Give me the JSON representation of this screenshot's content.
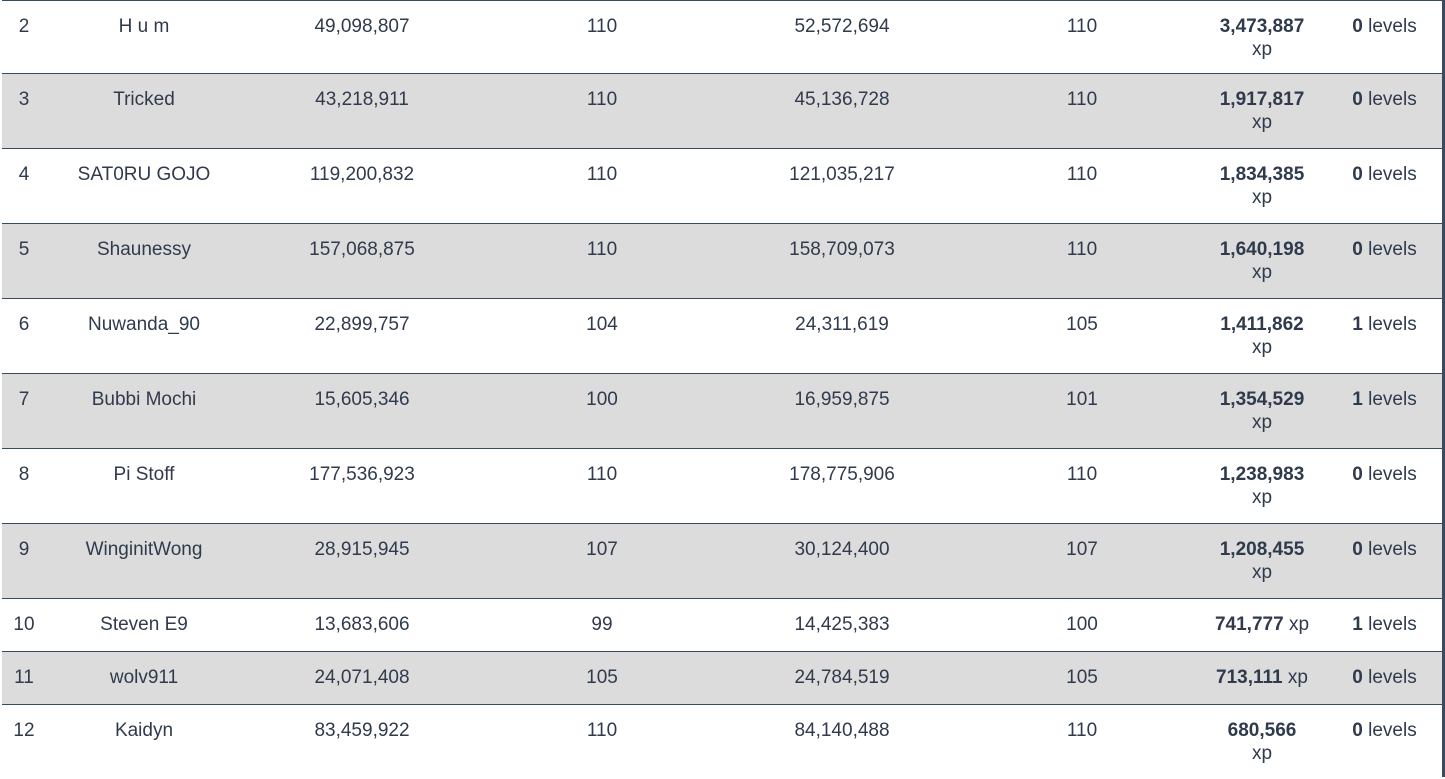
{
  "rows": [
    {
      "rank": "2",
      "name": "H u m",
      "xp_start": "49,098,807",
      "level_start": "110",
      "xp_end": "52,572,694",
      "level_end": "110",
      "xp_gain": "3,473,887",
      "xp_unit": "xp",
      "levels_gain": "0",
      "levels_unit": "levels",
      "wrap": true
    },
    {
      "rank": "3",
      "name": "Tricked",
      "xp_start": "43,218,911",
      "level_start": "110",
      "xp_end": "45,136,728",
      "level_end": "110",
      "xp_gain": "1,917,817",
      "xp_unit": "xp",
      "levels_gain": "0",
      "levels_unit": "levels",
      "wrap": true
    },
    {
      "rank": "4",
      "name": "SAT0RU GOJO",
      "xp_start": "119,200,832",
      "level_start": "110",
      "xp_end": "121,035,217",
      "level_end": "110",
      "xp_gain": "1,834,385",
      "xp_unit": "xp",
      "levels_gain": "0",
      "levels_unit": "levels",
      "wrap": true
    },
    {
      "rank": "5",
      "name": "Shaunessy",
      "xp_start": "157,068,875",
      "level_start": "110",
      "xp_end": "158,709,073",
      "level_end": "110",
      "xp_gain": "1,640,198",
      "xp_unit": "xp",
      "levels_gain": "0",
      "levels_unit": "levels",
      "wrap": true
    },
    {
      "rank": "6",
      "name": "Nuwanda_90",
      "xp_start": "22,899,757",
      "level_start": "104",
      "xp_end": "24,311,619",
      "level_end": "105",
      "xp_gain": "1,411,862",
      "xp_unit": "xp",
      "levels_gain": "1",
      "levels_unit": "levels",
      "wrap": true
    },
    {
      "rank": "7",
      "name": "Bubbi Mochi",
      "xp_start": "15,605,346",
      "level_start": "100",
      "xp_end": "16,959,875",
      "level_end": "101",
      "xp_gain": "1,354,529",
      "xp_unit": "xp",
      "levels_gain": "1",
      "levels_unit": "levels",
      "wrap": true
    },
    {
      "rank": "8",
      "name": "Pi Stoff",
      "xp_start": "177,536,923",
      "level_start": "110",
      "xp_end": "178,775,906",
      "level_end": "110",
      "xp_gain": "1,238,983",
      "xp_unit": "xp",
      "levels_gain": "0",
      "levels_unit": "levels",
      "wrap": true
    },
    {
      "rank": "9",
      "name": "WinginitWong",
      "xp_start": "28,915,945",
      "level_start": "107",
      "xp_end": "30,124,400",
      "level_end": "107",
      "xp_gain": "1,208,455",
      "xp_unit": "xp",
      "levels_gain": "0",
      "levels_unit": "levels",
      "wrap": true
    },
    {
      "rank": "10",
      "name": "Steven E9",
      "xp_start": "13,683,606",
      "level_start": "99",
      "xp_end": "14,425,383",
      "level_end": "100",
      "xp_gain": "741,777",
      "xp_unit": "xp",
      "levels_gain": "1",
      "levels_unit": "levels",
      "wrap": false
    },
    {
      "rank": "11",
      "name": "wolv911",
      "xp_start": "24,071,408",
      "level_start": "105",
      "xp_end": "24,784,519",
      "level_end": "105",
      "xp_gain": "713,111",
      "xp_unit": "xp",
      "levels_gain": "0",
      "levels_unit": "levels",
      "wrap": false
    },
    {
      "rank": "12",
      "name": "Kaidyn",
      "xp_start": "83,459,922",
      "level_start": "110",
      "xp_end": "84,140,488",
      "level_end": "110",
      "xp_gain": "680,566",
      "xp_unit": "xp",
      "levels_gain": "0",
      "levels_unit": "levels",
      "wrap": true
    }
  ]
}
